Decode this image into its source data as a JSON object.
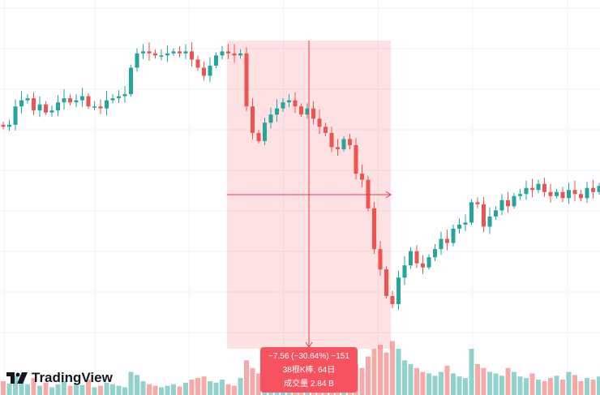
{
  "chart_data": {
    "type": "candlestick",
    "closes": [
      28.0,
      28.1,
      29.0,
      29.3,
      29.4,
      28.8,
      29.1,
      28.7,
      28.8,
      29.2,
      29.4,
      29.2,
      29.3,
      29.5,
      29.0,
      29.0,
      28.9,
      29.3,
      29.4,
      29.5,
      29.6,
      30.9,
      31.6,
      31.7,
      31.6,
      31.5,
      31.5,
      31.6,
      31.7,
      31.6,
      31.7,
      31.3,
      30.9,
      30.5,
      31.0,
      31.5,
      31.7,
      31.6,
      31.5,
      31.6,
      29.0,
      27.7,
      27.3,
      28.2,
      28.6,
      28.9,
      29.2,
      29.3,
      29.0,
      28.6,
      28.9,
      28.4,
      28.0,
      27.7,
      27.0,
      26.9,
      27.4,
      27.1,
      25.7,
      25.4,
      24.0,
      22.0,
      21.0,
      19.7,
      19.3,
      20.6,
      21.2,
      21.9,
      21.3,
      21.1,
      21.6,
      22.0,
      22.5,
      22.3,
      23.0,
      23.2,
      23.3,
      24.3,
      24.2,
      23.1,
      23.6,
      23.9,
      24.4,
      24.1,
      24.6,
      24.7,
      25.0,
      24.9,
      25.2,
      24.8,
      24.6,
      24.8,
      24.5,
      24.9,
      24.7,
      24.5,
      25.0,
      24.8,
      25.1
    ],
    "volumes": [
      18,
      15,
      25,
      20,
      14,
      22,
      12,
      16,
      10,
      14,
      18,
      12,
      15,
      13,
      20,
      10,
      12,
      16,
      14,
      12,
      10,
      30,
      26,
      18,
      14,
      12,
      10,
      12,
      14,
      11,
      16,
      20,
      22,
      24,
      18,
      16,
      20,
      14,
      12,
      22,
      45,
      35,
      28,
      20,
      16,
      14,
      12,
      10,
      14,
      12,
      18,
      20,
      24,
      22,
      28,
      25,
      18,
      22,
      40,
      35,
      50,
      60,
      65,
      55,
      70,
      60,
      45,
      40,
      35,
      30,
      28,
      25,
      30,
      38,
      28,
      24,
      22,
      60,
      40,
      35,
      30,
      28,
      25,
      35,
      30,
      24,
      22,
      28,
      20,
      18,
      22,
      25,
      20,
      30,
      26,
      18,
      22,
      20,
      24
    ],
    "up_color": "#26a69a",
    "down_color": "#ef5350",
    "grid": true,
    "measure": {
      "change_line": "−7.56 (−30.64%) −151",
      "bars_line": "38根K棒, 64日",
      "volume_line": "成交量 2.84 B",
      "color": "#f23645"
    }
  },
  "branding": {
    "logo_text": "TradingView"
  }
}
